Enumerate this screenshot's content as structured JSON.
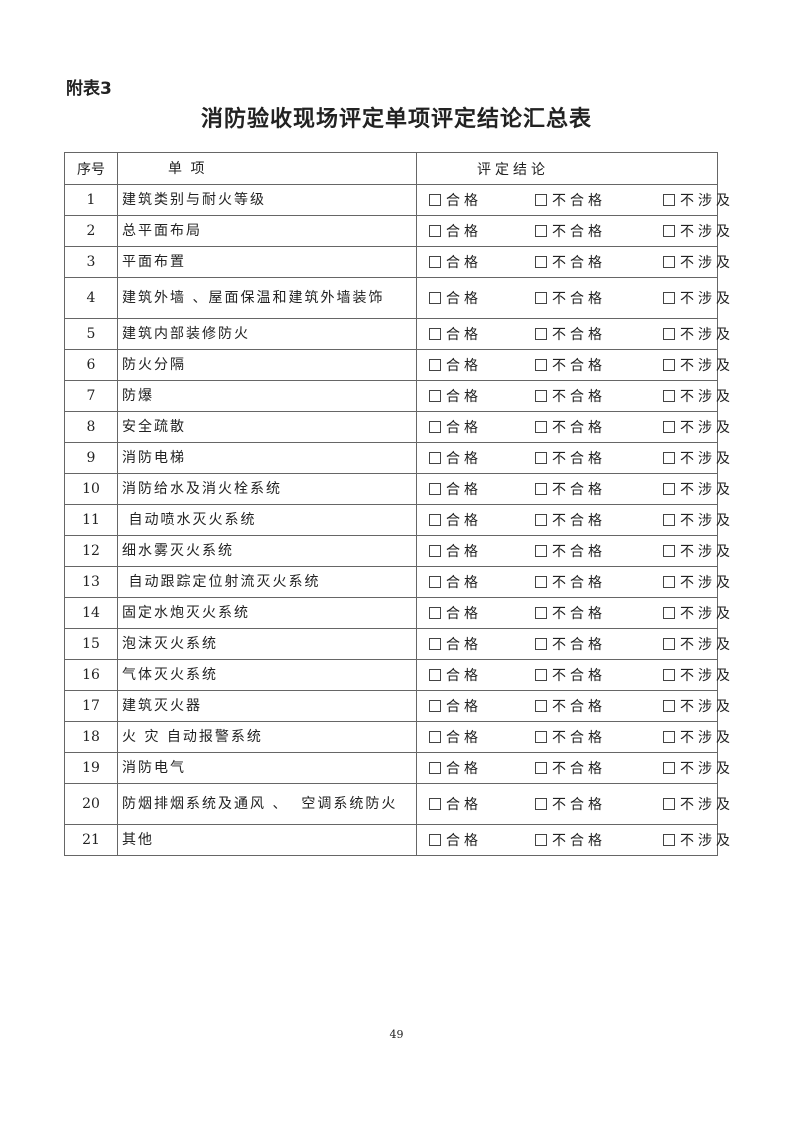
{
  "appendix_label": "附表3",
  "title": "消防验收现场评定单项评定结论汇总表",
  "table": {
    "headers": {
      "no": "序号",
      "item": "单 项",
      "result": "评定结论"
    },
    "options": [
      "合格",
      "不合格",
      "不涉及"
    ],
    "rows": [
      {
        "no": "1",
        "item": "建筑类别与耐火等级"
      },
      {
        "no": "2",
        "item": "总平面布局"
      },
      {
        "no": "3",
        "item": "平面布置"
      },
      {
        "no": "4",
        "item": "建筑外墙 、屋面保温和建筑外墙装饰"
      },
      {
        "no": "5",
        "item": "建筑内部装修防火"
      },
      {
        "no": "6",
        "item": "防火分隔"
      },
      {
        "no": "7",
        "item": "防爆"
      },
      {
        "no": "8",
        "item": "安全疏散"
      },
      {
        "no": "9",
        "item": "消防电梯"
      },
      {
        "no": "10",
        "item": "消防给水及消火栓系统"
      },
      {
        "no": "11",
        "item": " 自动喷水灭火系统"
      },
      {
        "no": "12",
        "item": "细水雾灭火系统"
      },
      {
        "no": "13",
        "item": " 自动跟踪定位射流灭火系统"
      },
      {
        "no": "14",
        "item": "固定水炮灭火系统"
      },
      {
        "no": "15",
        "item": "泡沫灭火系统"
      },
      {
        "no": "16",
        "item": "气体灭火系统"
      },
      {
        "no": "17",
        "item": "建筑灭火器"
      },
      {
        "no": "18",
        "item": "火 灾 自动报警系统"
      },
      {
        "no": "19",
        "item": "消防电气"
      },
      {
        "no": "20",
        "item": "防烟排烟系统及通风 、  空调系统防火"
      },
      {
        "no": "21",
        "item": "其他"
      }
    ]
  },
  "page_number": "49"
}
